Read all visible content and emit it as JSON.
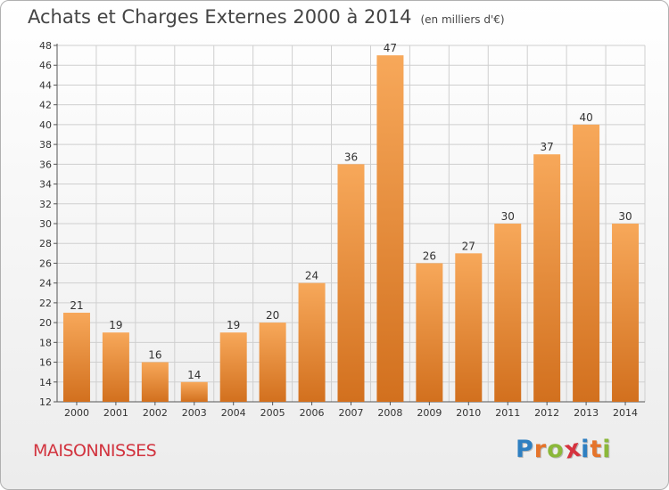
{
  "header": {
    "title": "Achats et Charges Externes 2000 à 2014",
    "subtitle": "(en milliers d'€)"
  },
  "place_name": "MAISONNISSES",
  "logo": {
    "text": "Proxiti",
    "letter_colors": [
      "#2e7fc1",
      "#e5742b",
      "#8bb83a",
      "#d6333f",
      "#2e7fc1",
      "#e5742b",
      "#8bb83a"
    ]
  },
  "colors": {
    "bar_top": "#f7a85a",
    "bar_bottom": "#d2701e",
    "grid": "#cfcfcf",
    "place_name": "#d2343f"
  },
  "chart_data": {
    "type": "bar",
    "categories": [
      "2000",
      "2001",
      "2002",
      "2003",
      "2004",
      "2005",
      "2006",
      "2007",
      "2008",
      "2009",
      "2010",
      "2011",
      "2012",
      "2013",
      "2014"
    ],
    "values": [
      21,
      19,
      16,
      14,
      19,
      20,
      24,
      36,
      47,
      26,
      27,
      30,
      37,
      40,
      30
    ],
    "title": "Achats et Charges Externes 2000 à 2014",
    "subtitle": "(en milliers d'€)",
    "ylim": [
      12,
      48
    ],
    "yticks": [
      12,
      14,
      16,
      18,
      20,
      22,
      24,
      26,
      28,
      30,
      32,
      34,
      36,
      38,
      40,
      42,
      44,
      46,
      48
    ],
    "grid": true,
    "data_labels": true
  }
}
